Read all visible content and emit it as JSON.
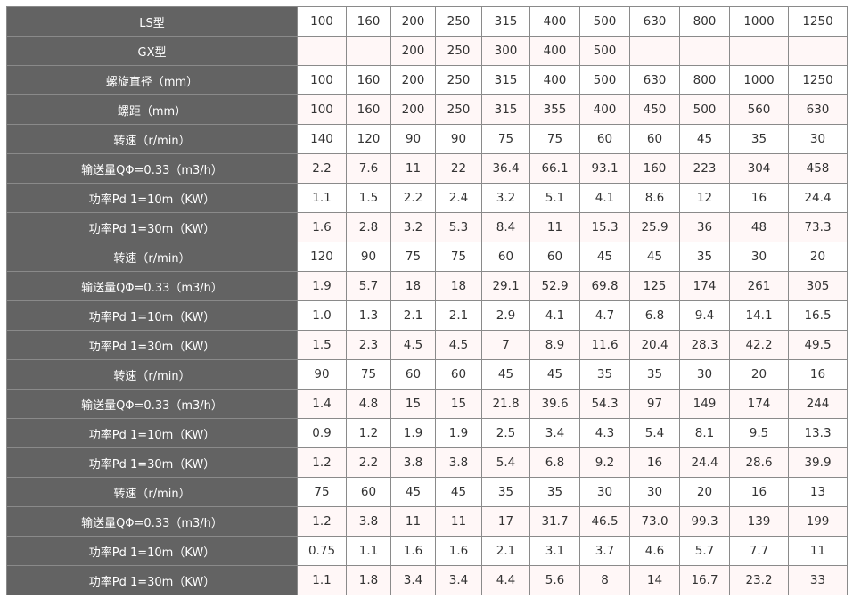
{
  "table": {
    "rows": [
      {
        "label": "LS型",
        "values": [
          "100",
          "160",
          "200",
          "250",
          "315",
          "400",
          "500",
          "630",
          "800",
          "1000",
          "1250"
        ]
      },
      {
        "label": "GX型",
        "values": [
          "",
          "",
          "200",
          "250",
          "300",
          "400",
          "500",
          "",
          "",
          "",
          ""
        ]
      },
      {
        "label": "螺旋直径（mm）",
        "values": [
          "100",
          "160",
          "200",
          "250",
          "315",
          "400",
          "500",
          "630",
          "800",
          "1000",
          "1250"
        ]
      },
      {
        "label": "螺距（mm）",
        "values": [
          "100",
          "160",
          "200",
          "250",
          "315",
          "355",
          "400",
          "450",
          "500",
          "560",
          "630"
        ]
      },
      {
        "label": "转速（r/min）",
        "values": [
          "140",
          "120",
          "90",
          "90",
          "75",
          "75",
          "60",
          "60",
          "45",
          "35",
          "30"
        ]
      },
      {
        "label": "输送量QΦ=0.33（m3/h）",
        "values": [
          "2.2",
          "7.6",
          "11",
          "22",
          "36.4",
          "66.1",
          "93.1",
          "160",
          "223",
          "304",
          "458"
        ]
      },
      {
        "label": "功率Pd 1=10m（KW）",
        "values": [
          "1.1",
          "1.5",
          "2.2",
          "2.4",
          "3.2",
          "5.1",
          "4.1",
          "8.6",
          "12",
          "16",
          "24.4"
        ]
      },
      {
        "label": "功率Pd 1=30m（KW）",
        "values": [
          "1.6",
          "2.8",
          "3.2",
          "5.3",
          "8.4",
          "11",
          "15.3",
          "25.9",
          "36",
          "48",
          "73.3"
        ]
      },
      {
        "label": "转速（r/min）",
        "values": [
          "120",
          "90",
          "75",
          "75",
          "60",
          "60",
          "45",
          "45",
          "35",
          "30",
          "20"
        ]
      },
      {
        "label": "输送量QΦ=0.33（m3/h）",
        "values": [
          "1.9",
          "5.7",
          "18",
          "18",
          "29.1",
          "52.9",
          "69.8",
          "125",
          "174",
          "261",
          "305"
        ]
      },
      {
        "label": "功率Pd 1=10m（KW）",
        "values": [
          "1.0",
          "1.3",
          "2.1",
          "2.1",
          "2.9",
          "4.1",
          "4.7",
          "6.8",
          "9.4",
          "14.1",
          "16.5"
        ]
      },
      {
        "label": "功率Pd 1=30m（KW）",
        "values": [
          "1.5",
          "2.3",
          "4.5",
          "4.5",
          "7",
          "8.9",
          "11.6",
          "20.4",
          "28.3",
          "42.2",
          "49.5"
        ]
      },
      {
        "label": "转速（r/min）",
        "values": [
          "90",
          "75",
          "60",
          "60",
          "45",
          "45",
          "35",
          "35",
          "30",
          "20",
          "16"
        ]
      },
      {
        "label": "输送量QΦ=0.33（m3/h）",
        "values": [
          "1.4",
          "4.8",
          "15",
          "15",
          "21.8",
          "39.6",
          "54.3",
          "97",
          "149",
          "174",
          "244"
        ]
      },
      {
        "label": "功率Pd 1=10m（KW）",
        "values": [
          "0.9",
          "1.2",
          "1.9",
          "1.9",
          "2.5",
          "3.4",
          "4.3",
          "5.4",
          "8.1",
          "9.5",
          "13.3"
        ]
      },
      {
        "label": "功率Pd 1=30m（KW）",
        "values": [
          "1.2",
          "2.2",
          "3.8",
          "3.8",
          "5.4",
          "6.8",
          "9.2",
          "16",
          "24.4",
          "28.6",
          "39.9"
        ]
      },
      {
        "label": "转速（r/min）",
        "values": [
          "75",
          "60",
          "45",
          "45",
          "35",
          "35",
          "30",
          "30",
          "20",
          "16",
          "13"
        ]
      },
      {
        "label": "输送量QΦ=0.33（m3/h）",
        "values": [
          "1.2",
          "3.8",
          "11",
          "11",
          "17",
          "31.7",
          "46.5",
          "73.0",
          "99.3",
          "139",
          "199"
        ]
      },
      {
        "label": "功率Pd 1=10m（KW）",
        "values": [
          "0.75",
          "1.1",
          "1.6",
          "1.6",
          "2.1",
          "3.1",
          "3.7",
          "4.6",
          "5.7",
          "7.7",
          "11"
        ]
      },
      {
        "label": "功率Pd 1=30m（KW）",
        "values": [
          "1.1",
          "1.8",
          "3.4",
          "3.4",
          "4.4",
          "5.6",
          "8",
          "14",
          "16.7",
          "23.2",
          "33"
        ]
      }
    ]
  },
  "colors": {
    "header_bg": "#636363",
    "row_alt_bg": "#fff7f7",
    "border": "#8a8a8a"
  }
}
